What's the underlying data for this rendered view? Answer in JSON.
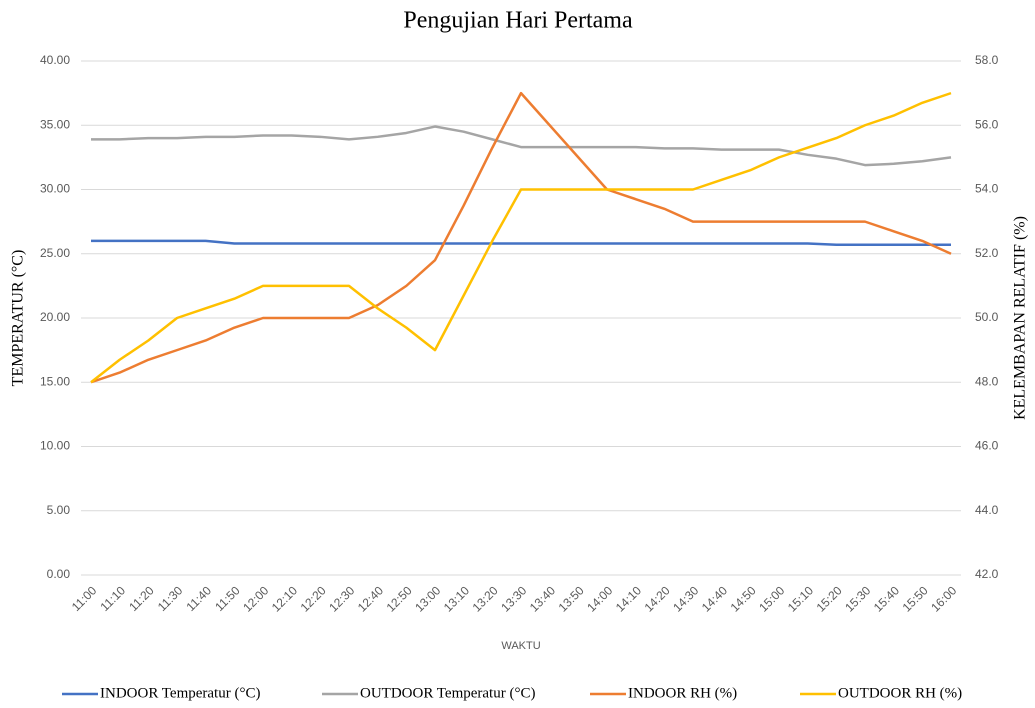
{
  "chart_data": {
    "type": "line",
    "title": "Pengujian Hari Pertama",
    "xlabel": "WAKTU",
    "ylabel": "TEMPERATUR (°C)",
    "y2label": "KELEMBAPAN RELATIF (%)",
    "categories": [
      "11:00",
      "11:10",
      "11:20",
      "11:30",
      "11:40",
      "11:50",
      "12:00",
      "12:10",
      "12:20",
      "12:30",
      "12:40",
      "12:50",
      "13:00",
      "13:10",
      "13:20",
      "13:30",
      "13:40",
      "13:50",
      "14:00",
      "14:10",
      "14:20",
      "14:30",
      "14:40",
      "14:50",
      "15:00",
      "15:10",
      "15:20",
      "15:30",
      "15:40",
      "15:50",
      "16:00"
    ],
    "series": [
      {
        "name": "INDOOR Temperatur (°C)",
        "color": "#4472c4",
        "axis": "y",
        "values": [
          26.0,
          26.0,
          26.0,
          26.0,
          26.0,
          25.8,
          25.8,
          25.8,
          25.8,
          25.8,
          25.8,
          25.8,
          25.8,
          25.8,
          25.8,
          25.8,
          25.8,
          25.8,
          25.8,
          25.8,
          25.8,
          25.8,
          25.8,
          25.8,
          25.8,
          25.8,
          25.7,
          25.7,
          25.7,
          25.7,
          25.7
        ]
      },
      {
        "name": "OUTDOOR Temperatur (°C)",
        "color": "#a5a5a5",
        "axis": "y",
        "values": [
          33.9,
          33.9,
          34.0,
          34.0,
          34.1,
          34.1,
          34.2,
          34.2,
          34.1,
          33.9,
          34.1,
          34.4,
          34.9,
          34.5,
          33.9,
          33.3,
          33.3,
          33.3,
          33.3,
          33.3,
          33.2,
          33.2,
          33.1,
          33.1,
          33.1,
          32.7,
          32.4,
          31.9,
          32.0,
          32.2,
          32.5
        ]
      },
      {
        "name": "INDOOR RH (%)",
        "color": "#ed7d31",
        "axis": "y2",
        "values": [
          48.0,
          48.3,
          48.7,
          49.0,
          49.3,
          49.7,
          50.0,
          50.0,
          50.0,
          50.0,
          50.4,
          51.0,
          51.8,
          53.5,
          55.3,
          57.0,
          56.0,
          55.0,
          54.0,
          53.7,
          53.4,
          53.0,
          53.0,
          53.0,
          53.0,
          53.0,
          53.0,
          53.0,
          52.7,
          52.4,
          52.0
        ]
      },
      {
        "name": "OUTDOOR RH (%)",
        "color": "#ffc000",
        "axis": "y2",
        "values": [
          48.0,
          48.7,
          49.3,
          50.0,
          50.3,
          50.6,
          51.0,
          51.0,
          51.0,
          51.0,
          50.3,
          49.7,
          49.0,
          50.7,
          52.4,
          54.0,
          54.0,
          54.0,
          54.0,
          54.0,
          54.0,
          54.0,
          54.3,
          54.6,
          55.0,
          55.3,
          55.6,
          56.0,
          56.3,
          56.7,
          57.0
        ]
      }
    ],
    "ylim": [
      0,
      40
    ],
    "yticks": [
      {
        "value": 0,
        "label": "0.00"
      },
      {
        "value": 5,
        "label": "5.00"
      },
      {
        "value": 10,
        "label": "10.00"
      },
      {
        "value": 15,
        "label": "15.00"
      },
      {
        "value": 20,
        "label": "20.00"
      },
      {
        "value": 25,
        "label": "25.00"
      },
      {
        "value": 30,
        "label": "30.00"
      },
      {
        "value": 35,
        "label": "35.00"
      },
      {
        "value": 40,
        "label": "40.00"
      }
    ],
    "y2lim": [
      42,
      58
    ],
    "y2ticks": [
      {
        "value": 42,
        "label": "42.0"
      },
      {
        "value": 44,
        "label": "44.0"
      },
      {
        "value": 46,
        "label": "46.0"
      },
      {
        "value": 48,
        "label": "48.0"
      },
      {
        "value": 50,
        "label": "50.0"
      },
      {
        "value": 52,
        "label": "52.0"
      },
      {
        "value": 54,
        "label": "54.0"
      },
      {
        "value": 56,
        "label": "56.0"
      },
      {
        "value": 58,
        "label": "58.0"
      }
    ],
    "grid": true,
    "legend": "bottom"
  }
}
